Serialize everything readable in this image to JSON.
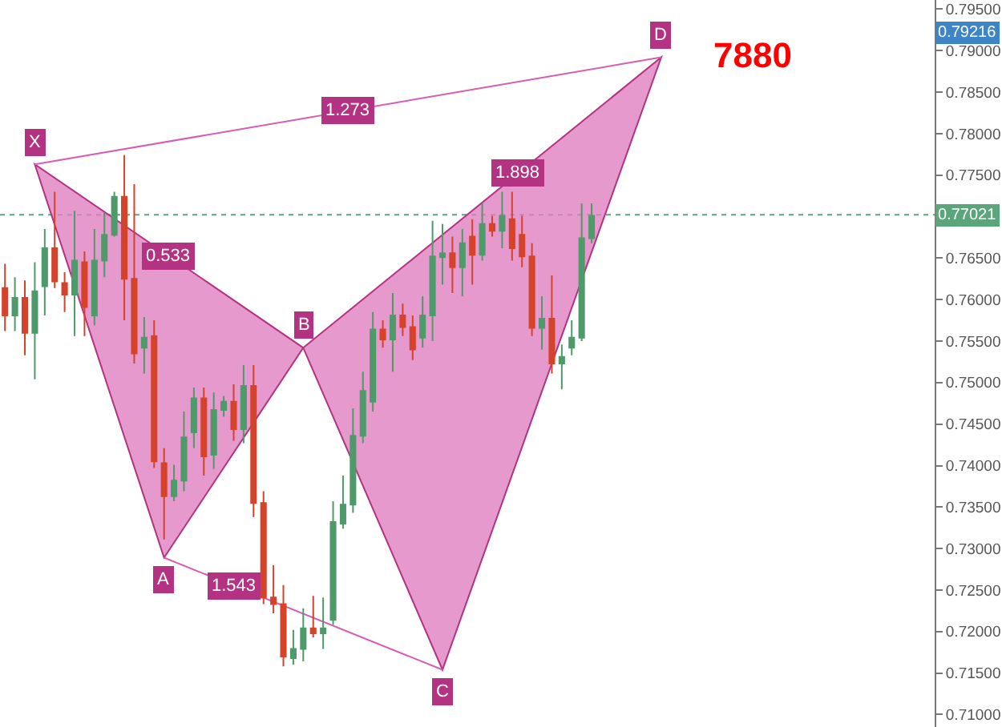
{
  "chart_data": {
    "type": "candlestick",
    "categories": [
      null,
      null,
      null,
      null,
      null,
      null,
      null,
      null,
      null,
      null,
      null,
      null,
      null,
      null,
      null,
      null,
      null,
      null,
      null,
      null,
      null,
      null,
      null,
      null,
      null,
      null,
      null,
      null,
      null,
      null,
      null,
      null,
      null,
      null,
      null,
      null,
      null,
      null,
      null,
      null,
      null,
      null,
      null,
      null,
      null,
      null,
      null,
      null,
      null,
      null,
      null,
      null,
      null,
      null,
      null,
      null,
      null,
      null,
      null,
      null,
      null,
      null,
      null,
      null,
      null,
      null,
      null,
      null,
      null,
      null,
      null,
      null,
      null,
      null,
      null,
      null,
      null,
      null,
      null,
      null,
      null,
      null,
      null,
      null,
      null,
      null,
      null,
      null,
      null,
      null,
      null,
      null,
      null,
      null
    ],
    "ohlc": [
      [
        0.7614,
        0.7643,
        0.7562,
        0.7581
      ],
      [
        0.7581,
        0.7627,
        0.7562,
        0.7602
      ],
      [
        0.7602,
        0.7623,
        0.7533,
        0.756
      ],
      [
        0.756,
        0.7645,
        0.7504,
        0.761
      ],
      [
        0.7616,
        0.7685,
        0.7581,
        0.7662
      ],
      [
        0.7662,
        0.773,
        0.7614,
        0.7622
      ],
      [
        0.762,
        0.7633,
        0.7585,
        0.7606
      ],
      [
        0.7606,
        0.7707,
        0.7556,
        0.7647
      ],
      [
        0.7645,
        0.7658,
        0.7556,
        0.7591
      ],
      [
        0.7581,
        0.7685,
        0.7569,
        0.7647
      ],
      [
        0.7647,
        0.7705,
        0.7627,
        0.7678
      ],
      [
        0.7678,
        0.773,
        0.7676,
        0.7724
      ],
      [
        0.7724,
        0.7774,
        0.7575,
        0.7625
      ],
      [
        0.7625,
        0.7739,
        0.7523,
        0.7535
      ],
      [
        0.7542,
        0.7579,
        0.7511,
        0.7554
      ],
      [
        0.7556,
        0.7575,
        0.7397,
        0.7405
      ],
      [
        0.7403,
        0.7421,
        0.7311,
        0.7363
      ],
      [
        0.7363,
        0.7401,
        0.7357,
        0.7382
      ],
      [
        0.7382,
        0.7465,
        0.7369,
        0.7434
      ],
      [
        0.744,
        0.7494,
        0.7421,
        0.7481
      ],
      [
        0.7481,
        0.7494,
        0.7388,
        0.7411
      ],
      [
        0.7413,
        0.7488,
        0.7396,
        0.7467
      ],
      [
        0.7467,
        0.7484,
        0.7459,
        0.7477
      ],
      [
        0.7477,
        0.7498,
        0.743,
        0.7444
      ],
      [
        0.7444,
        0.7521,
        0.7427,
        0.7496
      ],
      [
        0.7496,
        0.7521,
        0.7338,
        0.7355
      ],
      [
        0.7355,
        0.7369,
        0.7233,
        0.7241
      ],
      [
        0.7241,
        0.728,
        0.7222,
        0.7233
      ],
      [
        0.7233,
        0.7256,
        0.7158,
        0.717
      ],
      [
        0.7168,
        0.7202,
        0.716,
        0.7179
      ],
      [
        0.7179,
        0.7228,
        0.7164,
        0.7204
      ],
      [
        0.7204,
        0.7243,
        0.7193,
        0.7198
      ],
      [
        0.7198,
        0.7241,
        0.7179,
        0.7204
      ],
      [
        0.7214,
        0.7357,
        0.7208,
        0.7332
      ],
      [
        0.733,
        0.7388,
        0.7324,
        0.7353
      ],
      [
        0.7353,
        0.7469,
        0.7343,
        0.7436
      ],
      [
        0.7436,
        0.7513,
        0.7427,
        0.749
      ],
      [
        0.7477,
        0.7585,
        0.7465,
        0.7564
      ],
      [
        0.7564,
        0.7575,
        0.7542,
        0.7552
      ],
      [
        0.7552,
        0.7608,
        0.7513,
        0.7581
      ],
      [
        0.7581,
        0.7595,
        0.7556,
        0.7567
      ],
      [
        0.7567,
        0.7581,
        0.7527,
        0.754
      ],
      [
        0.7554,
        0.7604,
        0.7542,
        0.7581
      ],
      [
        0.7581,
        0.7695,
        0.755,
        0.7652
      ],
      [
        0.7651,
        0.7691,
        0.7618,
        0.7656
      ],
      [
        0.7656,
        0.7676,
        0.7608,
        0.7639
      ],
      [
        0.7639,
        0.7685,
        0.7604,
        0.7668
      ],
      [
        0.7676,
        0.7697,
        0.7618,
        0.7654
      ],
      [
        0.7654,
        0.7716,
        0.7647,
        0.7691
      ],
      [
        0.7691,
        0.7701,
        0.7676,
        0.7683
      ],
      [
        0.7683,
        0.773,
        0.7662,
        0.7701
      ],
      [
        0.7697,
        0.773,
        0.7647,
        0.7662
      ],
      [
        0.7678,
        0.7701,
        0.7639,
        0.7652
      ],
      [
        0.7652,
        0.7668,
        0.7556,
        0.7566
      ],
      [
        0.7566,
        0.7604,
        0.754,
        0.7577
      ],
      [
        0.7577,
        0.7629,
        0.7511,
        0.7523
      ],
      [
        0.7523,
        0.7546,
        0.7492,
        0.7531
      ],
      [
        0.7542,
        0.7575,
        0.7533,
        0.7554
      ],
      [
        0.7554,
        0.7716,
        0.755,
        0.7674
      ],
      [
        0.7674,
        0.7716,
        0.7668,
        0.7701
      ],
      null,
      null,
      null,
      null,
      null,
      null,
      null,
      null,
      null,
      null,
      null,
      null,
      null,
      null,
      null,
      null,
      null,
      null,
      null,
      null,
      null,
      null,
      null,
      null,
      null,
      null,
      null,
      null,
      null,
      null,
      null,
      null,
      null,
      null
    ],
    "colors": [
      "#d5432b",
      "#4e9a6a",
      "#d5432b",
      "#4e9a6a",
      "#4e9a6a",
      "#d5432b",
      "#d5432b",
      "#4e9a6a",
      "#d5432b",
      "#4e9a6a",
      "#4e9a6a",
      "#4e9a6a",
      "#d5432b",
      "#d5432b",
      "#4e9a6a",
      "#d5432b",
      "#d5432b",
      "#4e9a6a",
      "#4e9a6a",
      "#4e9a6a",
      "#d5432b",
      "#4e9a6a",
      "#4e9a6a",
      "#d5432b",
      "#4e9a6a",
      "#d5432b",
      "#d5432b",
      "#d5432b",
      "#d5432b",
      "#4e9a6a",
      "#4e9a6a",
      "#d5432b",
      "#4e9a6a",
      "#4e9a6a",
      "#4e9a6a",
      "#4e9a6a",
      "#4e9a6a",
      "#4e9a6a",
      "#d5432b",
      "#4e9a6a",
      "#d5432b",
      "#d5432b",
      "#4e9a6a",
      "#4e9a6a",
      "#4e9a6a",
      "#d5432b",
      "#4e9a6a",
      "#d5432b",
      "#4e9a6a",
      "#d5432b",
      "#4e9a6a",
      "#d5432b",
      "#d5432b",
      "#d5432b",
      "#4e9a6a",
      "#d5432b",
      "#4e9a6a",
      "#4e9a6a",
      "#4e9a6a",
      "#4e9a6a",
      null,
      null,
      null,
      null,
      null,
      null,
      null,
      null,
      null,
      null,
      null,
      null,
      null,
      null,
      null,
      null,
      null,
      null,
      null,
      null,
      null,
      null,
      null,
      null,
      null,
      null,
      null,
      null,
      null,
      null,
      null,
      null,
      null,
      null
    ],
    "series": [
      {
        "type": "area",
        "color": "#e07fbf",
        "values": [
          null,
          null,
          null,
          0.7763,
          null,
          null,
          null,
          null,
          null,
          null,
          null,
          null,
          null,
          null,
          null,
          null,
          0.7289,
          null,
          null,
          null,
          null,
          null,
          null,
          null,
          null,
          null,
          null,
          null,
          null,
          null,
          0.7542,
          null,
          null,
          null,
          null,
          null,
          null,
          null,
          null,
          null,
          null,
          null,
          null,
          null,
          null,
          null,
          null,
          null,
          null,
          null,
          null,
          null,
          null,
          null,
          null,
          null,
          null,
          null,
          null,
          null,
          null,
          null,
          null,
          null,
          null,
          null,
          null,
          null,
          null,
          null,
          null,
          null,
          null,
          null,
          null,
          null,
          null,
          null,
          null,
          null,
          null,
          null,
          null,
          null,
          null,
          null,
          null,
          null,
          null,
          null,
          null,
          null,
          null,
          null
        ]
      },
      {
        "type": "area",
        "color": "#e07fbf",
        "values": [
          null,
          null,
          null,
          null,
          null,
          null,
          null,
          null,
          null,
          null,
          null,
          null,
          null,
          null,
          null,
          null,
          null,
          null,
          null,
          null,
          null,
          null,
          null,
          null,
          null,
          null,
          null,
          null,
          null,
          null,
          0.7542,
          null,
          null,
          null,
          null,
          null,
          null,
          null,
          null,
          null,
          null,
          null,
          null,
          null,
          0.7154,
          null,
          null,
          null,
          null,
          null,
          null,
          null,
          null,
          null,
          null,
          null,
          null,
          null,
          null,
          null,
          null,
          null,
          null,
          null,
          null,
          null,
          0.7892,
          null,
          null,
          null,
          null,
          null,
          null,
          null,
          null,
          null,
          null,
          null,
          null,
          null,
          null,
          null,
          null,
          null,
          null,
          null,
          null,
          null,
          null,
          null,
          null,
          null,
          null,
          null
        ]
      },
      {
        "type": "line",
        "color": "#d65db3",
        "values": [
          null,
          null,
          null,
          0.7763,
          null,
          null,
          null,
          null,
          null,
          null,
          null,
          null,
          null,
          null,
          null,
          null,
          null,
          null,
          null,
          null,
          null,
          null,
          null,
          null,
          null,
          null,
          null,
          null,
          null,
          null,
          null,
          null,
          null,
          null,
          null,
          null,
          null,
          null,
          null,
          null,
          null,
          null,
          null,
          null,
          null,
          null,
          null,
          null,
          null,
          null,
          null,
          null,
          null,
          null,
          null,
          null,
          null,
          null,
          null,
          null,
          null,
          null,
          null,
          null,
          null,
          null,
          0.7892,
          null,
          null,
          null,
          null,
          null,
          null,
          null,
          null,
          null,
          null,
          null,
          null,
          null,
          null,
          null,
          null,
          null,
          null,
          null,
          null,
          null,
          null,
          null,
          null,
          null,
          null,
          null
        ]
      },
      {
        "type": "line",
        "color": "#d65db3",
        "values": [
          null,
          null,
          null,
          null,
          null,
          null,
          null,
          null,
          null,
          null,
          null,
          null,
          null,
          null,
          null,
          null,
          0.7289,
          null,
          null,
          null,
          null,
          null,
          null,
          null,
          null,
          null,
          null,
          null,
          null,
          null,
          null,
          null,
          null,
          null,
          null,
          null,
          null,
          null,
          null,
          null,
          null,
          null,
          null,
          null,
          0.7154,
          null,
          null,
          null,
          null,
          null,
          null,
          null,
          null,
          null,
          null,
          null,
          null,
          null,
          null,
          null,
          null,
          null,
          null,
          null,
          null,
          null,
          null,
          null,
          null,
          null,
          null,
          null,
          null,
          null,
          null,
          null,
          null,
          null,
          null,
          null,
          null,
          null,
          null,
          null,
          null,
          null,
          null,
          null,
          null,
          null,
          null,
          null,
          null,
          null
        ]
      }
    ],
    "ylim": [
      0.7085,
      0.7961
    ],
    "yticks": [
      {
        "value": 0.795,
        "label": "0.79500"
      },
      {
        "value": 0.79,
        "label": "0.79000"
      },
      {
        "value": 0.785,
        "label": "0.78500"
      },
      {
        "value": 0.78,
        "label": "0.78000"
      },
      {
        "value": 0.775,
        "label": "0.77500"
      },
      {
        "value": 0.77,
        "label": null
      },
      {
        "value": 0.765,
        "label": "0.76500"
      },
      {
        "value": 0.76,
        "label": "0.76000"
      },
      {
        "value": 0.755,
        "label": "0.75500"
      },
      {
        "value": 0.75,
        "label": "0.75000"
      },
      {
        "value": 0.745,
        "label": "0.74500"
      },
      {
        "value": 0.74,
        "label": "0.74000"
      },
      {
        "value": 0.735,
        "label": "0.73500"
      },
      {
        "value": 0.73,
        "label": "0.73000"
      },
      {
        "value": 0.725,
        "label": "0.72500"
      },
      {
        "value": 0.72,
        "label": "0.72000"
      },
      {
        "value": 0.715,
        "label": "0.71500"
      },
      {
        "value": 0.71,
        "label": "0.71000"
      }
    ],
    "ref_lines": [
      {
        "axis": "y",
        "value": 0.77021,
        "label": "0.77021",
        "color": "#5aa57a",
        "line_style": "dotted"
      }
    ],
    "annotations": [
      "X",
      "A",
      "B",
      "C",
      "D",
      "0.533",
      "1.898",
      "1.273",
      "1.543",
      "7880",
      {
        "text": "0.79216",
        "y": 0.79216
      }
    ],
    "tick_labels": "y",
    "grid": false
  }
}
